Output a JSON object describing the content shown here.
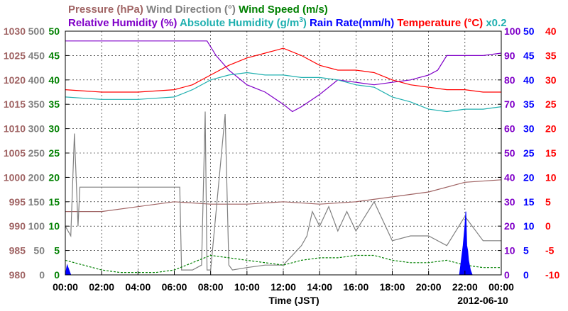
{
  "chart_data": {
    "type": "line",
    "date_label": "2012-06-10",
    "xlabel": "Time (JST)",
    "x_ticks": [
      "00:00",
      "02:00",
      "04:00",
      "06:00",
      "08:00",
      "10:00",
      "12:00",
      "14:00",
      "16:00",
      "18:00",
      "20:00",
      "22:00",
      "00:00"
    ],
    "x_range_hours": [
      0,
      24
    ],
    "legend": {
      "row1": [
        {
          "label": "Pressure (hPa)",
          "color": "#a06464"
        },
        {
          "label": "Wind Direction (°)",
          "color": "#808080"
        },
        {
          "label": "Wind Speed (m/s)",
          "color": "#008000"
        }
      ],
      "row2": [
        {
          "label": "Relative Humidity (%)",
          "color": "#8000c8"
        },
        {
          "label": "Absolute Humidity (g/m",
          "sup": "3",
          "tail": ")",
          "color": "#20b0b0"
        },
        {
          "label": "Rain Rate(mm/h)",
          "color": "#0000ff"
        },
        {
          "label": "Temperature (°C)",
          "color": "#ff0000"
        },
        {
          "label": "x0.2",
          "color": "#20b0b0"
        }
      ]
    },
    "axes": [
      {
        "name": "Pressure (hPa)",
        "side": "left",
        "color": "#a06464",
        "ylim": [
          980,
          1030
        ],
        "ticks": [
          1030,
          1025,
          1020,
          1015,
          1010,
          1005,
          1000,
          995,
          990,
          985,
          980
        ]
      },
      {
        "name": "Wind Direction (°)",
        "side": "left",
        "color": "#808080",
        "ylim": [
          0,
          500
        ],
        "ticks": [
          500,
          450,
          400,
          350,
          300,
          250,
          200,
          150,
          100,
          50,
          0
        ]
      },
      {
        "name": "Wind Speed (m/s)",
        "side": "left",
        "color": "#008000",
        "ylim": [
          0,
          50
        ],
        "ticks": [
          50,
          45,
          40,
          35,
          30,
          25,
          20,
          15,
          10,
          5,
          0
        ]
      },
      {
        "name": "Relative Humidity (%)",
        "side": "right",
        "color": "#8000c8",
        "ylim": [
          0,
          100
        ],
        "ticks": [
          100,
          90,
          80,
          70,
          60,
          50,
          40,
          30,
          20,
          10,
          0
        ]
      },
      {
        "name": "Rain Rate(mm/h)",
        "side": "right",
        "color": "#0000ff",
        "ylim": [
          0,
          50
        ],
        "ticks": [
          50,
          45,
          40,
          35,
          30,
          25,
          20,
          15,
          10,
          5,
          0
        ]
      },
      {
        "name": "Temperature (°C)",
        "side": "right",
        "color": "#ff0000",
        "ylim": [
          -10,
          40
        ],
        "ticks": [
          40,
          35,
          30,
          25,
          20,
          15,
          10,
          5,
          0,
          -5,
          -10
        ]
      }
    ],
    "grid": true,
    "series": [
      {
        "name": "Pressure (hPa)",
        "color": "#a06464",
        "axis": 0,
        "x": [
          0,
          2,
          4,
          6,
          8,
          10,
          12,
          14,
          16,
          18,
          20,
          22,
          24
        ],
        "y": [
          993,
          993,
          994,
          995,
          994.5,
          994.5,
          995,
          994.5,
          995,
          996,
          997,
          999,
          999.5
        ]
      },
      {
        "name": "Wind Direction (°)",
        "color": "#808080",
        "axis": 1,
        "x": [
          0,
          0.3,
          0.5,
          0.7,
          0.8,
          1.0,
          6.3,
          6.4,
          7.0,
          7.5,
          7.7,
          7.8,
          8.0,
          8.8,
          9.0,
          9.2,
          10.0,
          11.0,
          12.0,
          13.0,
          13.3,
          13.6,
          14.0,
          14.5,
          15.0,
          15.5,
          16.0,
          17.0,
          18.0,
          19.0,
          20.0,
          21.0,
          22.0,
          23.0,
          24.0
        ],
        "y": [
          100,
          80,
          290,
          100,
          180,
          180,
          180,
          10,
          10,
          20,
          335,
          10,
          10,
          330,
          20,
          10,
          15,
          20,
          20,
          60,
          80,
          130,
          100,
          140,
          90,
          130,
          90,
          150,
          70,
          80,
          80,
          60,
          120,
          70,
          70
        ]
      },
      {
        "name": "Wind Speed (m/s)",
        "color": "#008000",
        "axis": 2,
        "x": [
          0,
          1,
          2,
          3,
          4,
          5,
          6,
          7,
          8,
          9,
          10,
          11,
          12,
          13,
          14,
          15,
          16,
          17,
          18,
          19,
          20,
          21,
          22,
          23,
          24
        ],
        "y": [
          3,
          2,
          1,
          0.5,
          0.5,
          0.5,
          1,
          2.5,
          4,
          3.5,
          3,
          2.5,
          2,
          3,
          3.5,
          3.5,
          4,
          4,
          3,
          2.5,
          2.5,
          3,
          2,
          1.5,
          1.5
        ]
      },
      {
        "name": "Relative Humidity (%)",
        "color": "#8000c8",
        "axis": 3,
        "x": [
          0,
          2,
          4,
          6,
          7.8,
          8.3,
          9,
          10,
          11,
          12,
          12.5,
          13,
          14,
          15,
          16,
          17,
          18,
          19,
          20,
          20.5,
          21,
          22,
          23,
          24
        ],
        "y": [
          96,
          96,
          96,
          96,
          96,
          90,
          84,
          78,
          75,
          70,
          67,
          69,
          74,
          80,
          79,
          78,
          79,
          80,
          82,
          84,
          90,
          90,
          90,
          91
        ]
      },
      {
        "name": "Absolute Humidity ×0.2",
        "color": "#20b0b0",
        "axis": 3,
        "x": [
          0,
          2,
          4,
          6,
          7,
          8,
          9,
          10,
          11,
          12,
          13,
          14,
          15,
          16,
          17,
          18,
          19,
          20,
          21,
          22,
          23,
          24
        ],
        "y": [
          73,
          72,
          72,
          73,
          76,
          80,
          82,
          83,
          82,
          82,
          81,
          81,
          80,
          78,
          77,
          73,
          71,
          68,
          67,
          68,
          68,
          69
        ]
      },
      {
        "name": "Rain Rate(mm/h)",
        "color": "#0000ff",
        "axis": 4,
        "x": [
          0,
          0.1,
          0.2,
          0.3,
          0.4,
          21.7,
          21.8,
          21.9,
          22.0,
          22.05,
          22.1,
          22.15,
          22.2,
          22.3,
          22.4,
          22.5
        ],
        "y": [
          0,
          2,
          1,
          0,
          0,
          0,
          3,
          6,
          10,
          13,
          6,
          5,
          3,
          1,
          0,
          0
        ]
      },
      {
        "name": "Temperature (°C)",
        "color": "#ff0000",
        "axis": 5,
        "x": [
          0,
          2,
          4,
          6,
          7,
          8,
          9,
          10,
          11,
          12,
          13,
          14,
          15,
          16,
          17,
          18,
          19,
          20,
          21,
          22,
          23,
          24
        ],
        "y": [
          28,
          27.5,
          27.5,
          28,
          29,
          31,
          33,
          34.5,
          35.5,
          36.5,
          35,
          33,
          32,
          32,
          31.5,
          30,
          29,
          28.5,
          28,
          28,
          27.5,
          27.5
        ]
      }
    ]
  }
}
